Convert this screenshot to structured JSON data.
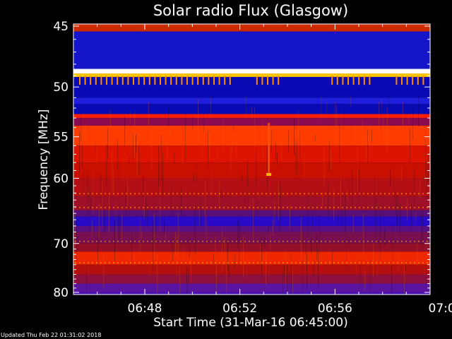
{
  "chart_data": {
    "type": "heatmap",
    "title": "Solar radio Flux (Glasgow)",
    "xlabel": "Start Time (31-Mar-16 06:45:00)",
    "ylabel": "Frequency [MHz]",
    "x_ticks": [
      "06:48",
      "06:52",
      "06:56",
      "07:00"
    ],
    "x_tick_minutes": [
      48,
      52,
      56,
      60
    ],
    "xlim_minutes": [
      45,
      60
    ],
    "y_ticks": [
      "45",
      "50",
      "55",
      "60",
      "70",
      "80"
    ],
    "y_tick_values": [
      45,
      50,
      55,
      60,
      70,
      80
    ],
    "ylim": [
      45,
      80
    ],
    "y_scale": "reciprocal",
    "y_direction": "increasing-downward",
    "bands": [
      {
        "from": 44.6,
        "to": 45.4,
        "color": "#cc2b00"
      },
      {
        "from": 45.4,
        "to": 48.4,
        "color": "#1414c8"
      },
      {
        "from": 48.4,
        "to": 48.8,
        "color": "#ffffff"
      },
      {
        "from": 48.8,
        "to": 49.1,
        "color": "#ffc800"
      },
      {
        "from": 49.1,
        "to": 51.0,
        "color": "#0a0ab4"
      },
      {
        "from": 51.0,
        "to": 51.6,
        "color": "#1e1edc"
      },
      {
        "from": 51.6,
        "to": 52.6,
        "color": "#0a0ab4"
      },
      {
        "from": 52.6,
        "to": 53.0,
        "color": "#ff1e00"
      },
      {
        "from": 53.0,
        "to": 53.8,
        "color": "#8c0a50"
      },
      {
        "from": 53.8,
        "to": 56.0,
        "color": "#ff3c00"
      },
      {
        "from": 56.0,
        "to": 58.0,
        "color": "#dc1400"
      },
      {
        "from": 58.0,
        "to": 60.0,
        "color": "#c80f00"
      },
      {
        "from": 60.0,
        "to": 62.5,
        "color": "#b40f14"
      },
      {
        "from": 62.5,
        "to": 64.5,
        "color": "#a00f28"
      },
      {
        "from": 64.5,
        "to": 65.5,
        "color": "#5a0f78"
      },
      {
        "from": 65.5,
        "to": 67.0,
        "color": "#280ac8"
      },
      {
        "from": 67.0,
        "to": 68.0,
        "color": "#5a0f82"
      },
      {
        "from": 68.0,
        "to": 70.0,
        "color": "#780f50"
      },
      {
        "from": 70.0,
        "to": 71.5,
        "color": "#960f28"
      },
      {
        "from": 71.5,
        "to": 74.0,
        "color": "#f02800"
      },
      {
        "from": 74.0,
        "to": 76.0,
        "color": "#b40f0f"
      },
      {
        "from": 76.0,
        "to": 78.0,
        "color": "#8c0f3c"
      },
      {
        "from": 78.0,
        "to": 80.0,
        "color": "#5a14a0"
      },
      {
        "from": 80.0,
        "to": 80.6,
        "color": "#460fb4"
      }
    ],
    "hotspot": {
      "minute": 53.2,
      "freq": 59.5,
      "color": "#ffb400"
    }
  },
  "footer": {
    "updated_text": "Updated Thu Feb 22 01:31:02 2018"
  }
}
